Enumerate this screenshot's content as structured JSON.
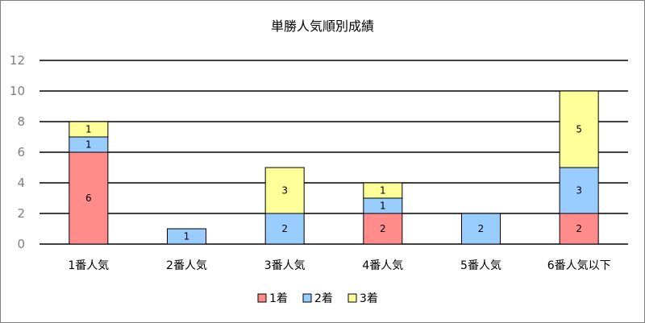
{
  "chart_data": {
    "type": "bar",
    "stacked": true,
    "title": "単勝人気順別成績",
    "xlabel": "",
    "ylabel": "",
    "categories": [
      "1番人気",
      "2番人気",
      "3番人気",
      "4番人気",
      "5番人気",
      "6番人気以下"
    ],
    "series": [
      {
        "name": "1着",
        "color": "#ff8b8b",
        "values": [
          6,
          0,
          0,
          2,
          0,
          2
        ]
      },
      {
        "name": "2着",
        "color": "#99ccff",
        "values": [
          1,
          1,
          2,
          1,
          2,
          3
        ]
      },
      {
        "name": "3着",
        "color": "#ffff99",
        "values": [
          1,
          0,
          3,
          1,
          0,
          5
        ]
      }
    ],
    "ylim": [
      0,
      12
    ],
    "yticks": [
      0,
      2,
      4,
      6,
      8,
      10,
      12
    ],
    "grid": true,
    "legend_position": "bottom"
  }
}
